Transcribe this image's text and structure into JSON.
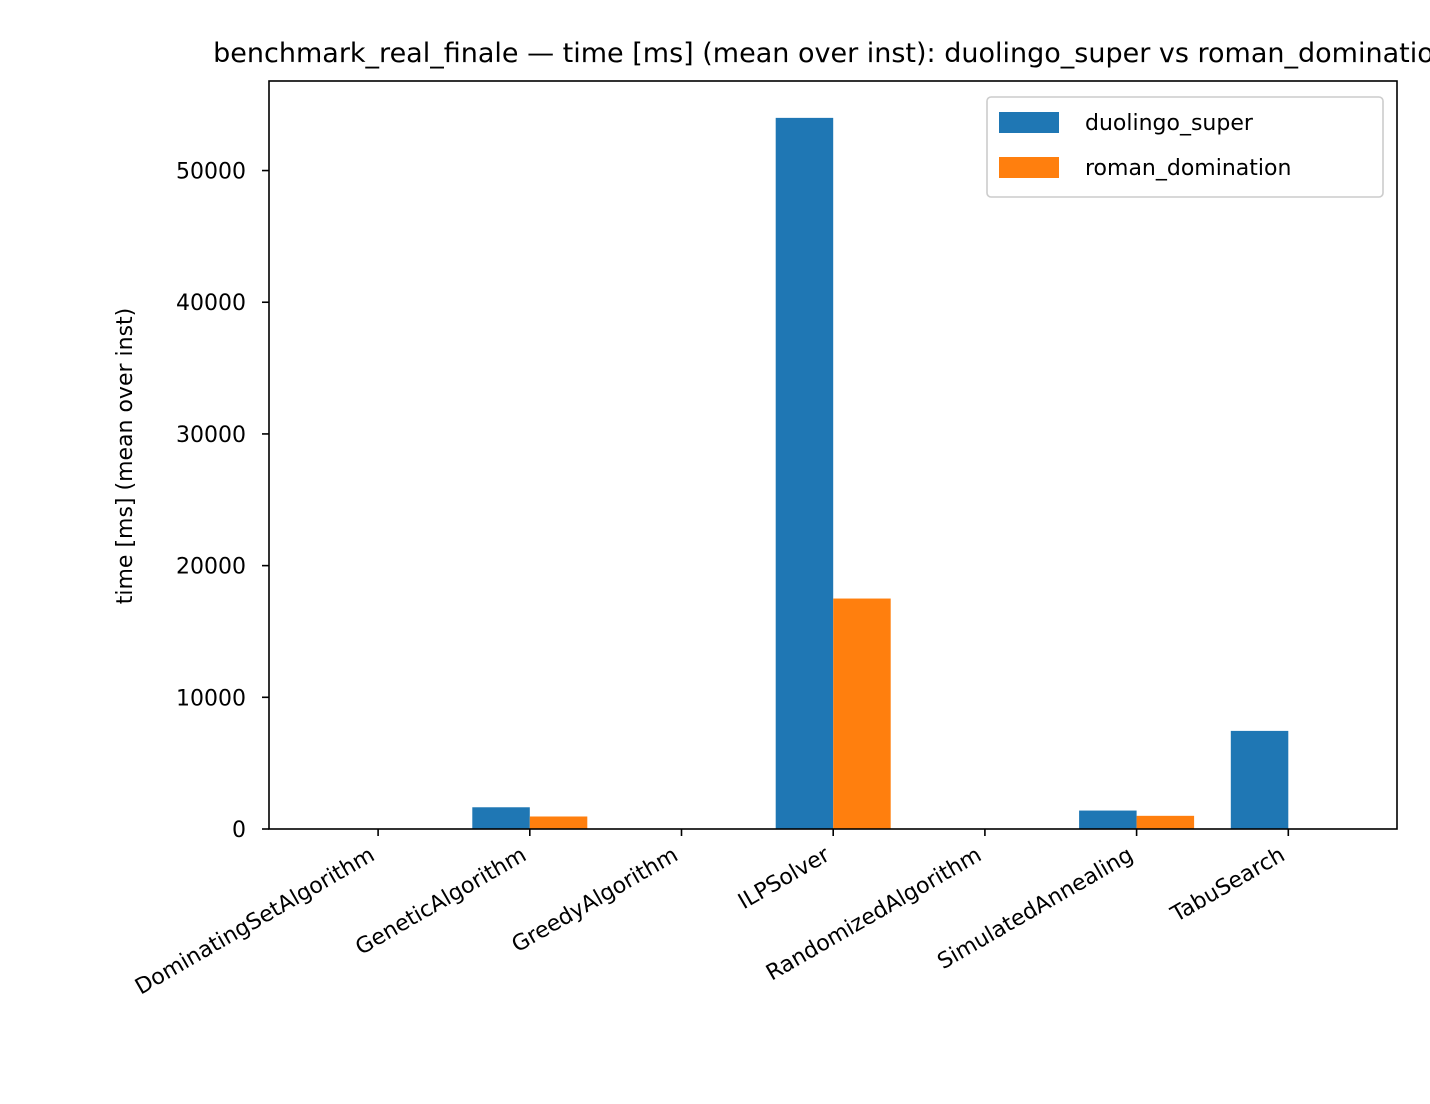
{
  "chart_data": {
    "type": "bar",
    "title": "benchmark_real_finale — time [ms] (mean over inst): duolingo_super vs roman_domination",
    "xlabel": "",
    "ylabel": "time [ms] (mean over inst)",
    "categories": [
      "DominatingSetAlgorithm",
      "GeneticAlgorithm",
      "GreedyAlgorithm",
      "ILPSolver",
      "RandomizedAlgorithm",
      "SimulatedAnnealing",
      "TabuSearch"
    ],
    "series": [
      {
        "name": "duolingo_super",
        "color": "#1f77b4",
        "values": [
          0,
          1650,
          0,
          54000,
          0,
          1400,
          7450
        ]
      },
      {
        "name": "roman_domination",
        "color": "#ff7f0e",
        "values": [
          0,
          950,
          0,
          17500,
          0,
          1000,
          0
        ]
      }
    ],
    "ylim": [
      0,
      56800
    ],
    "yticks": [
      0,
      10000,
      20000,
      30000,
      40000,
      50000
    ],
    "grid": false,
    "legend_position": "top-right"
  }
}
